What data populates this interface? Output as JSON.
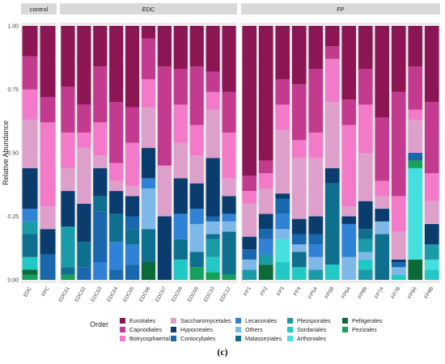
{
  "caption": "(c)",
  "legend_title": "Order",
  "colors": {
    "Eurotiales": "#8c1553",
    "Capnodiales": "#c23b8e",
    "Botryosphaeriales": "#f27ac8",
    "Saccharomycetales": "#dda0cb",
    "Hypocreales": "#0b3c6e",
    "Coniocybales": "#1967ad",
    "Lecanorales": "#2f82d6",
    "Others": "#7db8e8",
    "Malasseziales": "#0f6f8e",
    "Pleosporales": "#1a9ba8",
    "Sordariales": "#21c8c4",
    "Arthoniales": "#45e0dd",
    "Peltigerales": "#0a6b38",
    "Pezizales": "#16a15a"
  },
  "chart_data": {
    "type": "bar",
    "stacked": true,
    "ylabel": "Relative Abundance",
    "ylim": [
      0,
      1
    ],
    "yticks": [
      "0.00",
      "0.25",
      "0.50",
      "0.75",
      "1.00"
    ],
    "grid": true,
    "legend_position": "bottom",
    "panels": [
      {
        "name": "control",
        "categories": [
          "EDC",
          "FPC"
        ],
        "segments": [
          [
            [
              "Pezizales",
              0.02
            ],
            [
              "Peltigerales",
              0.02
            ],
            [
              "Sordariales",
              0.05
            ],
            [
              "Malasseziales",
              0.09
            ],
            [
              "Pleosporales",
              0.05
            ],
            [
              "Lecanorales",
              0.05
            ],
            [
              "Hypocreales",
              0.16
            ],
            [
              "Saccharomycetales",
              0.19
            ],
            [
              "Botryosphaeriales",
              0.12
            ],
            [
              "Capnodiales",
              0.13
            ],
            [
              "Eurotiales",
              0.12
            ]
          ],
          [
            [
              "Coniocybales",
              0.1
            ],
            [
              "Hypocreales",
              0.1
            ],
            [
              "Saccharomycetales",
              0.09
            ],
            [
              "Botryosphaeriales",
              0.33
            ],
            [
              "Capnodiales",
              0.1
            ],
            [
              "Eurotiales",
              0.28
            ]
          ]
        ]
      },
      {
        "name": "EDC",
        "categories": [
          "EDC01",
          "EDC02",
          "EDC03",
          "EDC04",
          "EDC05",
          "EDC06",
          "EDC07",
          "EDC08",
          "EDC09",
          "EDC10",
          "EDC12"
        ],
        "segments": [
          [
            [
              "Pezizales",
              0.02
            ],
            [
              "Malasseziales",
              0.03
            ],
            [
              "Pleosporales",
              0.16
            ],
            [
              "Hypocreales",
              0.14
            ],
            [
              "Saccharomycetales",
              0.09
            ],
            [
              "Botryosphaeriales",
              0.14
            ],
            [
              "Capnodiales",
              0.18
            ],
            [
              "Eurotiales",
              0.24
            ]
          ],
          [
            [
              "Coniocybales",
              0.05
            ],
            [
              "Malasseziales",
              0.1
            ],
            [
              "Hypocreales",
              0.15
            ],
            [
              "Saccharomycetales",
              0.22
            ],
            [
              "Botryosphaeriales",
              0.06
            ],
            [
              "Capnodiales",
              0.11
            ],
            [
              "Eurotiales",
              0.31
            ]
          ],
          [
            [
              "Lecanorales",
              0.07
            ],
            [
              "Coniocybales",
              0.2
            ],
            [
              "Malasseziales",
              0.06
            ],
            [
              "Hypocreales",
              0.11
            ],
            [
              "Saccharomycetales",
              0.05
            ],
            [
              "Botryosphaeriales",
              0.13
            ],
            [
              "Capnodiales",
              0.22
            ],
            [
              "Eurotiales",
              0.16
            ]
          ],
          [
            [
              "Coniocybales",
              0.04
            ],
            [
              "Lecanorales",
              0.11
            ],
            [
              "Malasseziales",
              0.11
            ],
            [
              "Hypocreales",
              0.09
            ],
            [
              "Saccharomycetales",
              0.04
            ],
            [
              "Botryosphaeriales",
              0.07
            ],
            [
              "Capnodiales",
              0.24
            ],
            [
              "Eurotiales",
              0.3
            ]
          ],
          [
            [
              "Coniocybales",
              0.06
            ],
            [
              "Lecanorales",
              0.08
            ],
            [
              "Malasseziales",
              0.06
            ],
            [
              "Coniocybales",
              0.05
            ],
            [
              "Hypocreales",
              0.08
            ],
            [
              "Saccharomycetales",
              0.04
            ],
            [
              "Botryosphaeriales",
              0.17
            ],
            [
              "Capnodiales",
              0.14
            ],
            [
              "Eurotiales",
              0.32
            ]
          ],
          [
            [
              "Peltigerales",
              0.07
            ],
            [
              "Malasseziales",
              0.13
            ],
            [
              "Others",
              0.16
            ],
            [
              "Lecanorales",
              0.04
            ],
            [
              "Hypocreales",
              0.12
            ],
            [
              "Saccharomycetales",
              0.16
            ],
            [
              "Botryosphaeriales",
              0.11
            ],
            [
              "Capnodiales",
              0.16
            ],
            [
              "Eurotiales",
              0.05
            ]
          ],
          [
            [
              "Hypocreales",
              0.25
            ],
            [
              "Saccharomycetales",
              0.2
            ],
            [
              "Capnodiales",
              0.39
            ],
            [
              "Eurotiales",
              0.16
            ]
          ],
          [
            [
              "Sordariales",
              0.08
            ],
            [
              "Malasseziales",
              0.08
            ],
            [
              "Lecanorales",
              0.1
            ],
            [
              "Hypocreales",
              0.14
            ],
            [
              "Saccharomycetales",
              0.14
            ],
            [
              "Botryosphaeriales",
              0.15
            ],
            [
              "Capnodiales",
              0.14
            ],
            [
              "Eurotiales",
              0.17
            ]
          ],
          [
            [
              "Pezizales",
              0.05
            ],
            [
              "Malasseziales",
              0.06
            ],
            [
              "Others",
              0.11
            ],
            [
              "Lecanorales",
              0.06
            ],
            [
              "Hypocreales",
              0.1
            ],
            [
              "Saccharomycetales",
              0.11
            ],
            [
              "Botryosphaeriales",
              0.12
            ],
            [
              "Capnodiales",
              0.23
            ],
            [
              "Eurotiales",
              0.16
            ]
          ],
          [
            [
              "Pezizales",
              0.03
            ],
            [
              "Sordariales",
              0.06
            ],
            [
              "Pleosporales",
              0.07
            ],
            [
              "Malasseziales",
              0.02
            ],
            [
              "Others",
              0.05
            ],
            [
              "Coniocybales",
              0.02
            ],
            [
              "Hypocreales",
              0.23
            ],
            [
              "Saccharomycetales",
              0.19
            ],
            [
              "Botryosphaeriales",
              0.07
            ],
            [
              "Capnodiales",
              0.08
            ],
            [
              "Eurotiales",
              0.18
            ]
          ],
          [
            [
              "Pezizales",
              0.02
            ],
            [
              "Malasseziales",
              0.17
            ],
            [
              "Others",
              0.04
            ],
            [
              "Lecanorales",
              0.03
            ],
            [
              "Hypocreales",
              0.07
            ],
            [
              "Saccharomycetales",
              0.07
            ],
            [
              "Botryosphaeriales",
              0.18
            ],
            [
              "Capnodiales",
              0.16
            ],
            [
              "Eurotiales",
              0.26
            ]
          ]
        ]
      },
      {
        "name": "FP",
        "categories": [
          "FP1",
          "FP2",
          "FP3",
          "FP4",
          "FP5A",
          "FP5B",
          "FP6A",
          "FP6B",
          "FP7A",
          "FP7B",
          "FP8A",
          "FP8B"
        ],
        "segments": [
          [
            [
              "Pleosporales",
              0.04
            ],
            [
              "Others",
              0.04
            ],
            [
              "Coniocybales",
              0.04
            ],
            [
              "Hypocreales",
              0.05
            ],
            [
              "Saccharomycetales",
              0.13
            ],
            [
              "Botryosphaeriales",
              0.05
            ],
            [
              "Capnodiales",
              0.06
            ],
            [
              "Eurotiales",
              0.59
            ]
          ],
          [
            [
              "Peltigerales",
              0.06
            ],
            [
              "Pleosporales",
              0.04
            ],
            [
              "Lecanorales",
              0.06
            ],
            [
              "Coniocybales",
              0.04
            ],
            [
              "Hypocreales",
              0.06
            ],
            [
              "Saccharomycetales",
              0.1
            ],
            [
              "Botryosphaeriales",
              0.06
            ],
            [
              "Capnodiales",
              0.05
            ],
            [
              "Eurotiales",
              0.53
            ]
          ],
          [
            [
              "Sordariales",
              0.07
            ],
            [
              "Arthoniales",
              0.09
            ],
            [
              "Others",
              0.04
            ],
            [
              "Lecanorales",
              0.06
            ],
            [
              "Coniocybales",
              0.06
            ],
            [
              "Hypocreales",
              0.02
            ],
            [
              "Saccharomycetales",
              0.25
            ],
            [
              "Botryosphaeriales",
              0.1
            ],
            [
              "Capnodiales",
              0.1
            ],
            [
              "Eurotiales",
              0.21
            ]
          ],
          [
            [
              "Sordariales",
              0.05
            ],
            [
              "Malasseziales",
              0.06
            ],
            [
              "Others",
              0.03
            ],
            [
              "Coniocybales",
              0.04
            ],
            [
              "Hypocreales",
              0.06
            ],
            [
              "Saccharomycetales",
              0.24
            ],
            [
              "Botryosphaeriales",
              0.07
            ],
            [
              "Capnodiales",
              0.22
            ],
            [
              "Eurotiales",
              0.23
            ]
          ],
          [
            [
              "Pleosporales",
              0.04
            ],
            [
              "Others",
              0.05
            ],
            [
              "Lecanorales",
              0.05
            ],
            [
              "Coniocybales",
              0.04
            ],
            [
              "Hypocreales",
              0.07
            ],
            [
              "Saccharomycetales",
              0.23
            ],
            [
              "Botryosphaeriales",
              0.1
            ],
            [
              "Capnodiales",
              0.25
            ],
            [
              "Eurotiales",
              0.17
            ]
          ],
          [
            [
              "Sordariales",
              0.06
            ],
            [
              "Malasseziales",
              0.32
            ],
            [
              "Hypocreales",
              0.06
            ],
            [
              "Saccharomycetales",
              0.26
            ],
            [
              "Botryosphaeriales",
              0.17
            ],
            [
              "Capnodiales",
              0.05
            ],
            [
              "Eurotiales",
              0.08
            ]
          ],
          [
            [
              "Others",
              0.09
            ],
            [
              "Lecanorales",
              0.13
            ],
            [
              "Hypocreales",
              0.03
            ],
            [
              "Saccharomycetales",
              0.04
            ],
            [
              "Botryosphaeriales",
              0.32
            ],
            [
              "Capnodiales",
              0.1
            ],
            [
              "Eurotiales",
              0.29
            ]
          ],
          [
            [
              "Pleosporales",
              0.04
            ],
            [
              "Sordariales",
              0.04
            ],
            [
              "Others",
              0.03
            ],
            [
              "Pleosporales",
              0.05
            ],
            [
              "Malasseziales",
              0.04
            ],
            [
              "Hypocreales",
              0.11
            ],
            [
              "Saccharomycetales",
              0.19
            ],
            [
              "Botryosphaeriales",
              0.19
            ],
            [
              "Capnodiales",
              0.14
            ],
            [
              "Eurotiales",
              0.17
            ]
          ],
          [
            [
              "Malasseziales",
              0.18
            ],
            [
              "Others",
              0.05
            ],
            [
              "Hypocreales",
              0.05
            ],
            [
              "Saccharomycetales",
              0.05
            ],
            [
              "Botryosphaeriales",
              0.06
            ],
            [
              "Capnodiales",
              0.25
            ],
            [
              "Eurotiales",
              0.36
            ]
          ],
          [
            [
              "Sordariales",
              0.02
            ],
            [
              "Others",
              0.03
            ],
            [
              "Coniocybales",
              0.02
            ],
            [
              "Hypocreales",
              0.01
            ],
            [
              "Saccharomycetales",
              0.11
            ],
            [
              "Botryosphaeriales",
              0.14
            ],
            [
              "Capnodiales",
              0.41
            ],
            [
              "Eurotiales",
              0.26
            ]
          ],
          [
            [
              "Peltigerales",
              0.08
            ],
            [
              "Arthoniales",
              0.36
            ],
            [
              "Pezizales",
              0.03
            ],
            [
              "Coniocybales",
              0.03
            ],
            [
              "Saccharomycetales",
              0.13
            ],
            [
              "Botryosphaeriales",
              0.04
            ],
            [
              "Capnodiales",
              0.17
            ],
            [
              "Eurotiales",
              0.16
            ]
          ],
          [
            [
              "Sordariales",
              0.04
            ],
            [
              "Arthoniales",
              0.04
            ],
            [
              "Pleosporales",
              0.06
            ],
            [
              "Hypocreales",
              0.08
            ],
            [
              "Saccharomycetales",
              0.09
            ],
            [
              "Botryosphaeriales",
              0.11
            ],
            [
              "Capnodiales",
              0.28
            ],
            [
              "Eurotiales",
              0.3
            ]
          ]
        ]
      }
    ],
    "legend": [
      "Eurotiales",
      "Capnodiales",
      "Botryosphaeriales",
      "Saccharomycetales",
      "Hypocreales",
      "Coniocybales",
      "Lecanorales",
      "Others",
      "Malasseziales",
      "Pleosporales",
      "Sordariales",
      "Arthoniales",
      "Peltigerales",
      "Pezizales"
    ]
  }
}
